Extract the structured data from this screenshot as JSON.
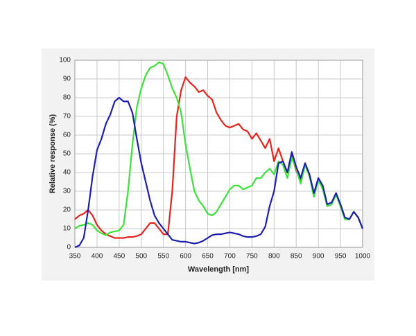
{
  "chart_data": {
    "type": "line",
    "x_label": "Wavelength [nm]",
    "y_label": "Relative response (%)",
    "x": [
      350,
      360,
      370,
      380,
      390,
      400,
      410,
      420,
      430,
      440,
      450,
      460,
      470,
      480,
      490,
      500,
      510,
      520,
      530,
      540,
      550,
      560,
      570,
      580,
      590,
      600,
      610,
      620,
      630,
      640,
      650,
      660,
      670,
      680,
      690,
      700,
      710,
      720,
      730,
      740,
      750,
      760,
      770,
      780,
      790,
      800,
      810,
      820,
      830,
      840,
      850,
      860,
      870,
      880,
      890,
      900,
      910,
      920,
      930,
      940,
      950,
      960,
      970,
      980,
      990,
      1000
    ],
    "series": [
      {
        "color": "#e8231c",
        "values": [
          15,
          17,
          18,
          20,
          17,
          12,
          9,
          7,
          6,
          5,
          5,
          5,
          5.5,
          5.5,
          6,
          7,
          10,
          13,
          13,
          10,
          7,
          7,
          30,
          70,
          84,
          91,
          88,
          86,
          83,
          84,
          81,
          79,
          72,
          68,
          65,
          64,
          65,
          66,
          63,
          62,
          58,
          61,
          57,
          53,
          58,
          46,
          53,
          46,
          40,
          49,
          41,
          36,
          45,
          38,
          28,
          37,
          32,
          22,
          23,
          29,
          22,
          15,
          15,
          19,
          16,
          10
        ]
      },
      {
        "color": "#3ae23a",
        "values": [
          10,
          11.5,
          12,
          13,
          12,
          9,
          7.5,
          6.5,
          8,
          8.5,
          9,
          12,
          30,
          55,
          75,
          85,
          92,
          96,
          97,
          99,
          98,
          92,
          85,
          80,
          72,
          55,
          42,
          30,
          25,
          22,
          18,
          17,
          19,
          23,
          27,
          31,
          33,
          33,
          31,
          32,
          33,
          37,
          37,
          40,
          42,
          39,
          46,
          44,
          37,
          48,
          42,
          34,
          44,
          38,
          27,
          36,
          31,
          22,
          23,
          28,
          22,
          15,
          15,
          19,
          16,
          10
        ]
      },
      {
        "color": "#1a1fb0",
        "values": [
          0,
          1,
          5,
          20,
          38,
          52,
          58,
          66,
          71,
          78,
          80,
          78,
          78,
          72,
          58,
          45,
          35,
          25,
          17,
          13,
          10,
          7,
          4,
          3.5,
          3,
          3,
          2.5,
          2,
          2.5,
          3.5,
          5,
          6.5,
          7,
          7,
          7.5,
          8,
          7.5,
          7,
          6,
          5.5,
          5.5,
          6,
          7,
          11,
          22,
          30,
          45,
          46,
          40,
          51,
          43,
          37,
          45,
          39,
          29,
          37,
          33,
          23,
          24,
          29,
          23,
          16,
          15,
          19,
          16,
          10
        ]
      }
    ],
    "xlim": [
      350,
      1000
    ],
    "ylim": [
      0,
      100
    ],
    "xticks": [
      350,
      400,
      450,
      500,
      550,
      600,
      650,
      700,
      750,
      800,
      850,
      900,
      950,
      1000
    ],
    "yticks": [
      0,
      10,
      20,
      30,
      40,
      50,
      60,
      70,
      80,
      90,
      100
    ],
    "grid": true
  }
}
